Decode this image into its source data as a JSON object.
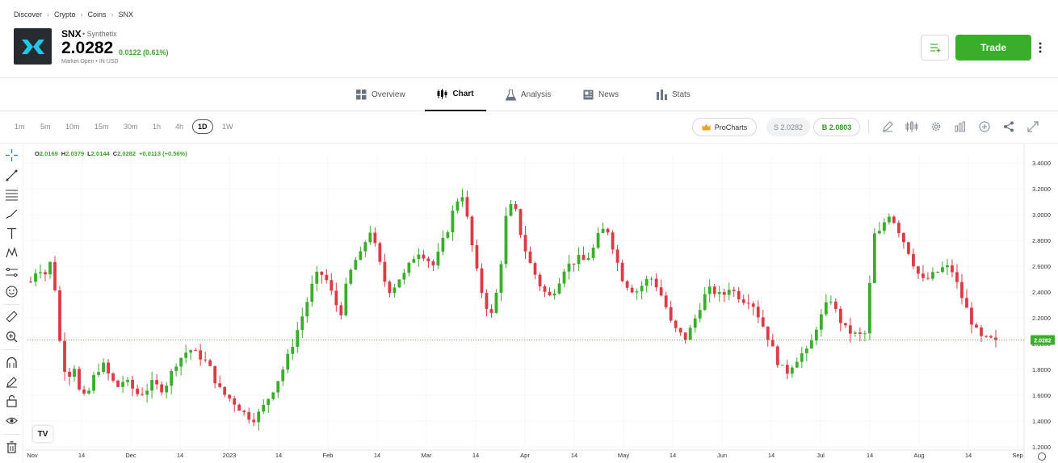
{
  "breadcrumb": [
    "Discover",
    "Crypto",
    "Coins",
    "SNX"
  ],
  "asset": {
    "symbol": "SNX",
    "name": "Synthetix",
    "price": "2.0282",
    "change": "0.0122 (0.61%)",
    "status": "Market Open",
    "currency": "IN USD"
  },
  "actions": {
    "trade": "Trade"
  },
  "tabs": [
    {
      "label": "Overview",
      "icon": "grid-icon"
    },
    {
      "label": "Chart",
      "icon": "candles-icon"
    },
    {
      "label": "Analysis",
      "icon": "flask-icon"
    },
    {
      "label": "News",
      "icon": "news-icon"
    },
    {
      "label": "Stats",
      "icon": "bar-stats-icon"
    }
  ],
  "active_tab": "Chart",
  "timeframes": [
    "1m",
    "5m",
    "10m",
    "15m",
    "30m",
    "1h",
    "4h",
    "1D",
    "1W"
  ],
  "active_timeframe": "1D",
  "prochart": {
    "label": "ProCharts"
  },
  "quote": {
    "sell": "S 2.0282",
    "buy": "B 2.0803"
  },
  "colors": {
    "up": "#3aad2b",
    "down": "#dc3b45",
    "accent": "#3aad2b"
  },
  "ohlc": {
    "open_label": "O",
    "open": "2.0169",
    "high_label": "H",
    "high": "2.0379",
    "low_label": "L",
    "low": "2.0144",
    "close_label": "C",
    "close": "2.0282",
    "change": "+0.0113 (+0.56%)"
  },
  "chart_data": {
    "type": "candlestick",
    "title": "",
    "x_ticks": [
      "Nov",
      "14",
      "Dec",
      "14",
      "2023",
      "14",
      "Feb",
      "14",
      "Mar",
      "14",
      "Apr",
      "14",
      "May",
      "14",
      "Jun",
      "14",
      "Jul",
      "14",
      "Aug",
      "14",
      "Sep"
    ],
    "y_ticks": [
      "3.4000",
      "3.2000",
      "3.0000",
      "2.8000",
      "2.6000",
      "2.4000",
      "2.2000",
      "2.0000",
      "1.8000",
      "1.6000",
      "1.4000",
      "1.2000"
    ],
    "ylim": [
      1.2,
      3.4
    ],
    "last_price_label": "2.0282",
    "last_price": 2.0282,
    "grid": true,
    "close_path": [
      2.48,
      2.6,
      2.54,
      2.66,
      2.03,
      1.72,
      1.84,
      1.56,
      1.62,
      1.78,
      1.84,
      1.74,
      1.66,
      1.72,
      1.66,
      1.6,
      1.64,
      1.7,
      1.64,
      1.7,
      1.84,
      1.9,
      1.96,
      1.92,
      1.88,
      1.8,
      1.66,
      1.6,
      1.56,
      1.5,
      1.44,
      1.42,
      1.48,
      1.58,
      1.68,
      1.8,
      1.94,
      2.1,
      2.26,
      2.44,
      2.56,
      2.5,
      2.36,
      2.22,
      2.5,
      2.64,
      2.7,
      2.9,
      2.72,
      2.5,
      2.4,
      2.5,
      2.54,
      2.66,
      2.72,
      2.66,
      2.6,
      2.76,
      2.9,
      3.1,
      3.16,
      2.84,
      2.54,
      2.32,
      2.22,
      2.48,
      2.98,
      3.1,
      2.86,
      2.66,
      2.54,
      2.42,
      2.36,
      2.44,
      2.58,
      2.62,
      2.66,
      2.64,
      2.72,
      2.86,
      2.9,
      2.72,
      2.52,
      2.44,
      2.4,
      2.46,
      2.52,
      2.44,
      2.32,
      2.14,
      2.08,
      2.04,
      2.16,
      2.3,
      2.42,
      2.4,
      2.36,
      2.44,
      2.38,
      2.34,
      2.34,
      2.22,
      2.1,
      1.96,
      1.82,
      1.78,
      1.86,
      1.92,
      1.94,
      2.12,
      2.24,
      2.36,
      2.22,
      2.12,
      2.08,
      2.06,
      2.08,
      2.84,
      2.86,
      3.02,
      2.94,
      2.82,
      2.7,
      2.56,
      2.48,
      2.52,
      2.56,
      2.6,
      2.56,
      2.4,
      2.26,
      2.12,
      2.04,
      2.03,
      2.0282
    ],
    "note": "Daily SNX/USD candlesticks; values estimated from the price axis."
  }
}
